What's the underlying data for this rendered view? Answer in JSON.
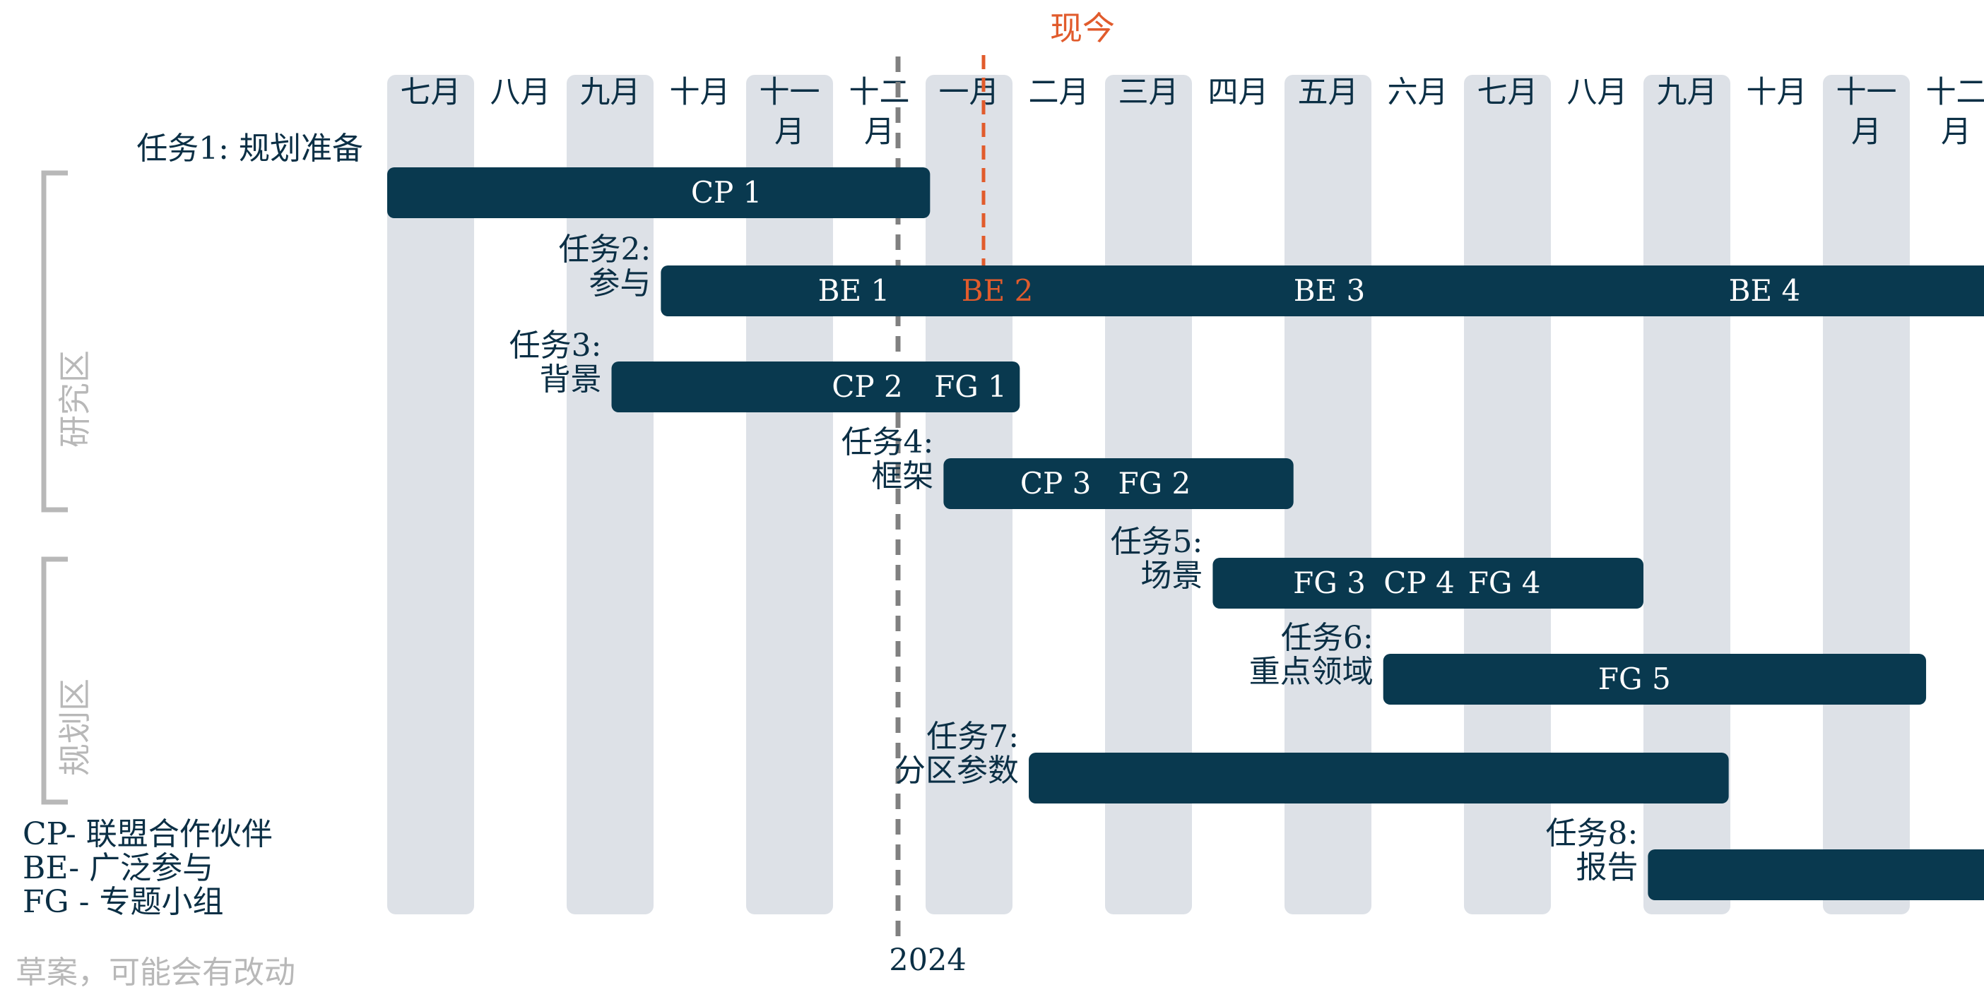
{
  "chart_data": {
    "type": "gantt",
    "months": [
      "七月",
      "八月",
      "九月",
      "十月",
      "十一\n月",
      "十二\n月",
      "一月",
      "二月",
      "三月",
      "四月",
      "五月",
      "六月",
      "七月",
      "八月",
      "九月",
      "十月",
      "十一\n月",
      "十二\n月"
    ],
    "year_marker": "2024",
    "now_label": "现今",
    "zones": [
      "研究区",
      "规划区"
    ],
    "tasks": [
      {
        "label": "任务1: 规划准备",
        "start": 0,
        "end": 6.05,
        "segments": [
          {
            "text": "CP 1",
            "at": 3.78
          }
        ]
      },
      {
        "label": "任务2:\n参与",
        "start": 3.05,
        "end": 18.5,
        "segments": [
          {
            "text": "BE 1",
            "at": 5.2
          },
          {
            "text": "BE 2",
            "at": 6.8,
            "highlight": true
          },
          {
            "text": "BE 3",
            "at": 10.5
          },
          {
            "text": "BE 4",
            "at": 15.35
          }
        ]
      },
      {
        "label": "任务3:\n背景",
        "start": 2.5,
        "end": 7.05,
        "segments": [
          {
            "text": "CP 2",
            "at": 5.35
          },
          {
            "text": "FG 1",
            "at": 6.5
          }
        ]
      },
      {
        "label": "任务4:\n框架",
        "start": 6.2,
        "end": 10.1,
        "segments": [
          {
            "text": "CP 3",
            "at": 7.45
          },
          {
            "text": "FG 2",
            "at": 8.55
          }
        ]
      },
      {
        "label": "任务5:\n场景",
        "start": 9.2,
        "end": 14.0,
        "segments": [
          {
            "text": "FG 3",
            "at": 10.5
          },
          {
            "text": "CP 4",
            "at": 11.5
          },
          {
            "text": "FG 4",
            "at": 12.45
          }
        ]
      },
      {
        "label": "任务6:\n重点领域",
        "start": 11.1,
        "end": 17.15,
        "segments": [
          {
            "text": "FG 5",
            "at": 13.9
          }
        ]
      },
      {
        "label": "任务7:\n分区参数",
        "start": 7.15,
        "end": 14.95,
        "segments": []
      },
      {
        "label": "任务8:\n报告",
        "start": 14.05,
        "end": 18.5,
        "segments": []
      }
    ],
    "legend": [
      "CP- 联盟合作伙伴",
      "BE- 广泛参与",
      "FG - 专题小组"
    ],
    "note": "草案，可能会有改动",
    "colors": {
      "bar": "#09394f",
      "column": "#dde1e7",
      "text": "#0b2f45",
      "accent": "#e15b2c",
      "muted": "#b8b8b8",
      "year_line": "#808080"
    }
  }
}
